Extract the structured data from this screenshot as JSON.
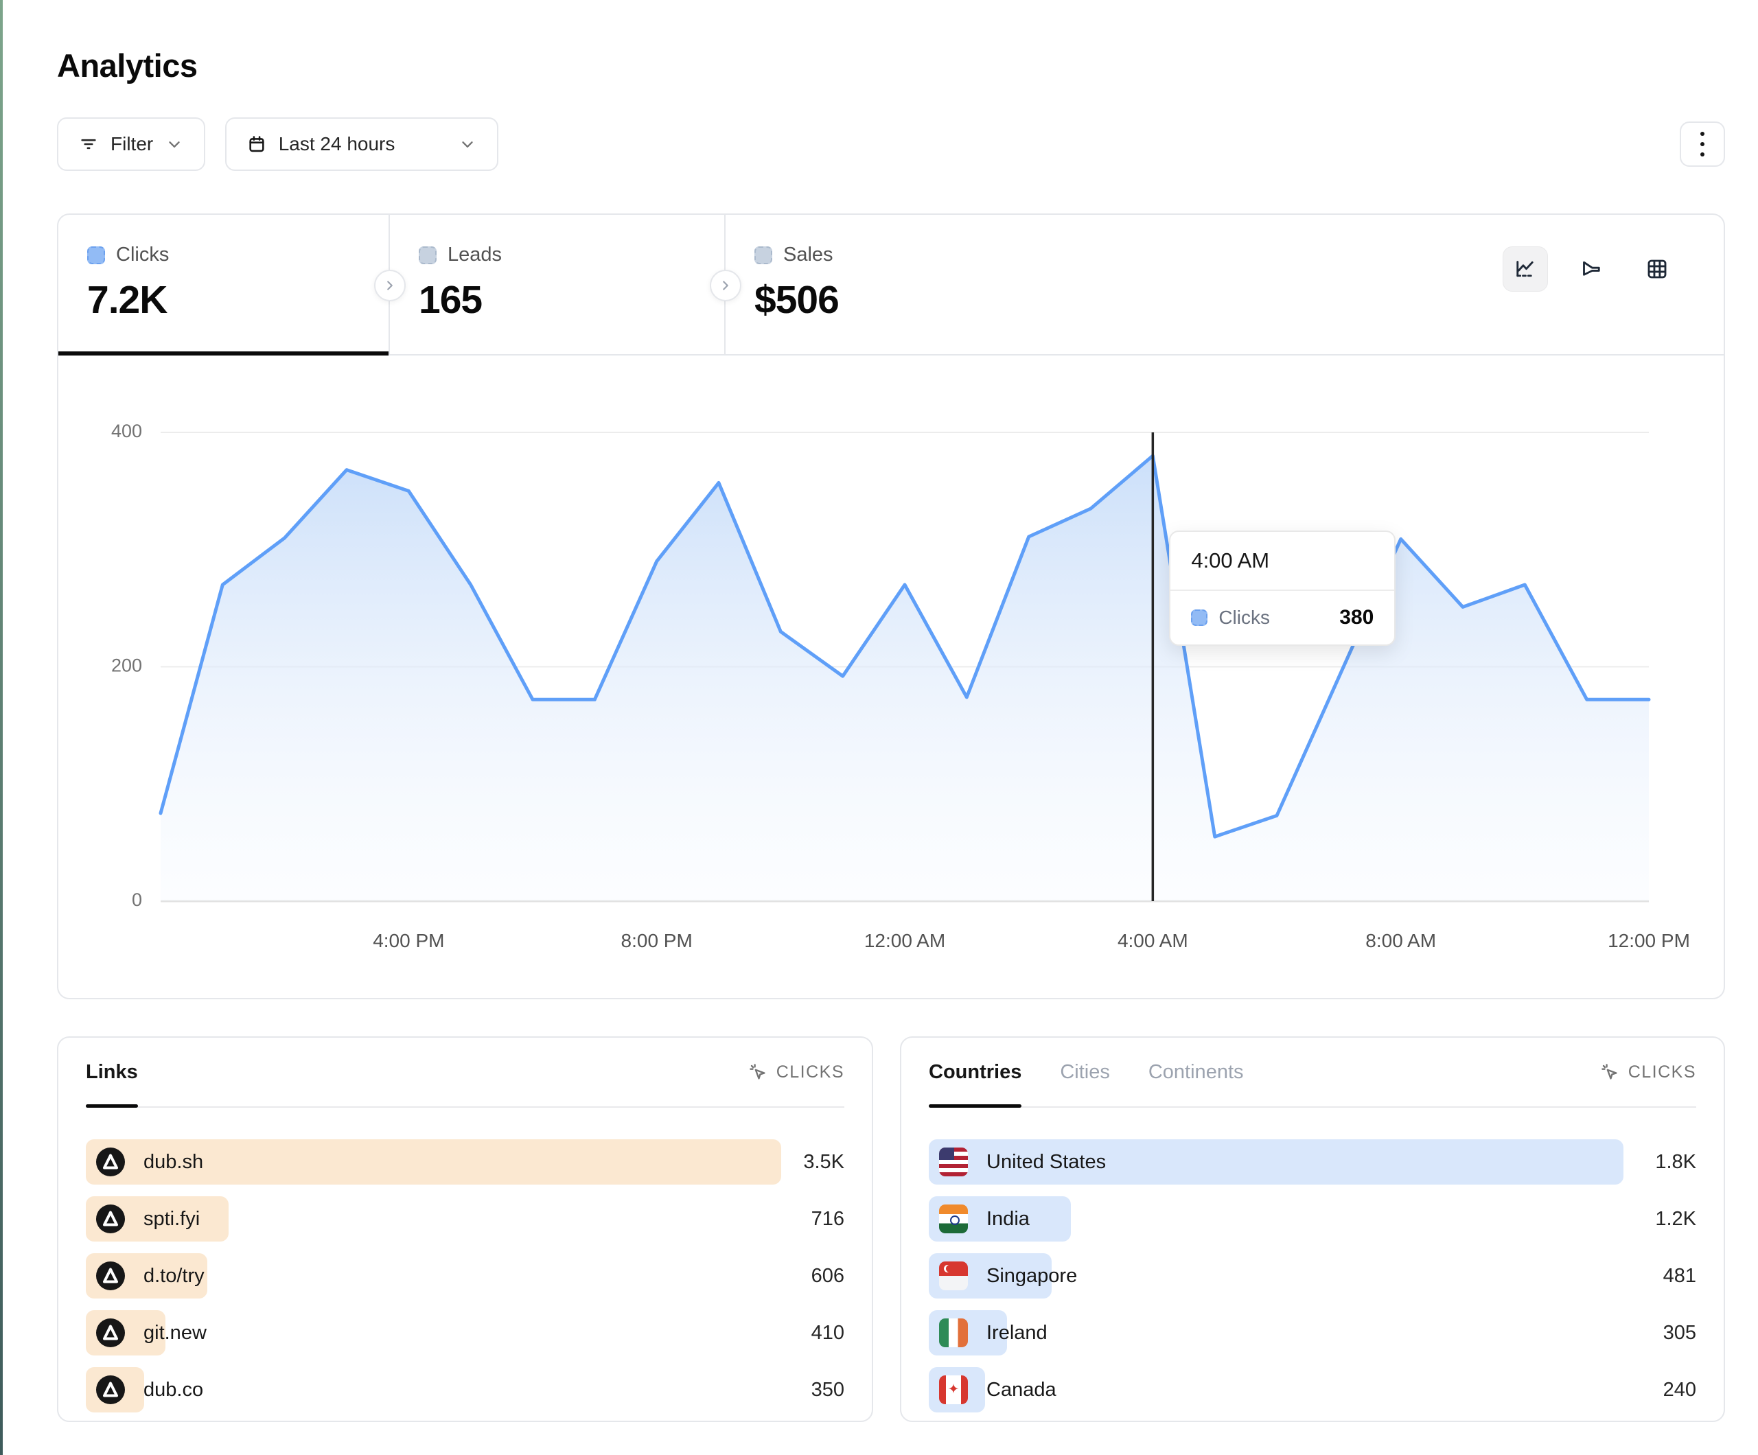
{
  "page": {
    "title": "Analytics"
  },
  "toolbar": {
    "filter": {
      "label": "Filter"
    },
    "date_range": {
      "label": "Last 24 hours"
    }
  },
  "stats_tabs": [
    {
      "label": "Clicks",
      "value": "7.2K",
      "active": true
    },
    {
      "label": "Leads",
      "value": "165",
      "active": false
    },
    {
      "label": "Sales",
      "value": "$506",
      "active": false
    }
  ],
  "chart_toolbar": {
    "icons": [
      "line-chart",
      "funnel",
      "grid"
    ],
    "active": "line-chart"
  },
  "chart_data": {
    "type": "area",
    "series_name": "Clicks",
    "line_color": "#5f9ff8",
    "fill_top_color": "#c9def9",
    "x_hours": [
      "12 PM",
      "1 PM",
      "2 PM",
      "3 PM",
      "4 PM",
      "5 PM",
      "6 PM",
      "7 PM",
      "8 PM",
      "9 PM",
      "10 PM",
      "11 PM",
      "12 AM",
      "1 AM",
      "2 AM",
      "3 AM",
      "4 AM",
      "5 AM",
      "6 AM",
      "7 AM",
      "8 AM",
      "9 AM",
      "10 AM",
      "11 AM",
      "12 PM"
    ],
    "values": [
      75,
      270,
      310,
      368,
      350,
      270,
      172,
      172,
      290,
      357,
      230,
      192,
      270,
      174,
      311,
      335,
      380,
      55,
      73,
      191,
      309,
      251,
      270,
      172,
      172
    ],
    "ylim": [
      0,
      400
    ],
    "yticks": [
      0,
      200,
      400
    ],
    "xticks": [
      {
        "index": 4,
        "label": "4:00 PM"
      },
      {
        "index": 8,
        "label": "8:00 PM"
      },
      {
        "index": 12,
        "label": "12:00 AM"
      },
      {
        "index": 16,
        "label": "4:00 AM"
      },
      {
        "index": 20,
        "label": "8:00 AM"
      },
      {
        "index": 24,
        "label": "12:00 PM"
      }
    ],
    "grid": "horizontal",
    "legend": "none",
    "crosshair_index": 16,
    "tooltip": {
      "title": "4:00 AM",
      "series": "Clicks",
      "value": "380"
    }
  },
  "links_panel": {
    "tab_label": "Links",
    "metric_label": "CLICKS",
    "bar_color": "#fbe8d1",
    "rows": [
      {
        "name": "dub.sh",
        "value": "3.5K",
        "bar_pct": 91.7
      },
      {
        "name": "spti.fyi",
        "value": "716",
        "bar_pct": 18.8
      },
      {
        "name": "d.to/try",
        "value": "606",
        "bar_pct": 16.0
      },
      {
        "name": "git.new",
        "value": "410",
        "bar_pct": 10.5
      },
      {
        "name": "dub.co",
        "value": "350",
        "bar_pct": 7.7
      }
    ]
  },
  "countries_panel": {
    "tabs": [
      {
        "label": "Countries",
        "active": true
      },
      {
        "label": "Cities",
        "active": false
      },
      {
        "label": "Continents",
        "active": false
      }
    ],
    "metric_label": "CLICKS",
    "bar_color": "#d9e7fb",
    "rows": [
      {
        "name": "United States",
        "value": "1.8K",
        "flag": "us",
        "bar_pct": 90.5
      },
      {
        "name": "India",
        "value": "1.2K",
        "flag": "in",
        "bar_pct": 18.5
      },
      {
        "name": "Singapore",
        "value": "481",
        "flag": "sg",
        "bar_pct": 16.0
      },
      {
        "name": "Ireland",
        "value": "305",
        "flag": "ie",
        "bar_pct": 10.2
      },
      {
        "name": "Canada",
        "value": "240",
        "flag": "ca",
        "bar_pct": 7.3
      }
    ]
  }
}
